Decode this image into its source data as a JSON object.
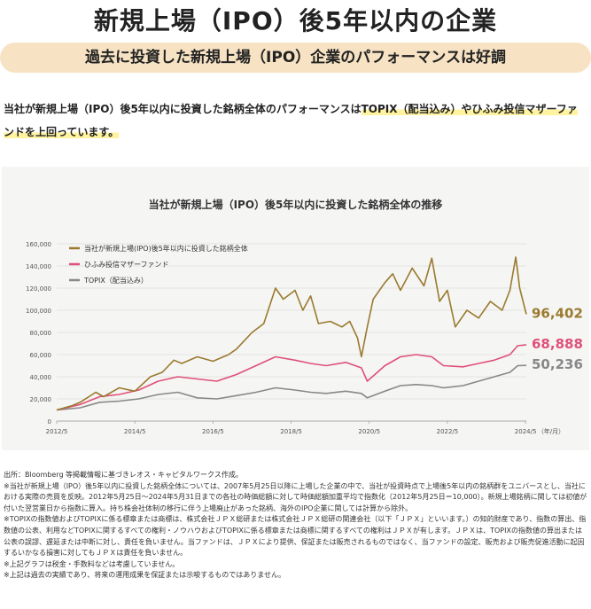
{
  "header": {
    "title": "新規上場（IPO）後5年以内の企業",
    "subtitle": "過去に投資した新規上場（IPO）企業のパフォーマンスは好調"
  },
  "intro": {
    "text_plain": "当社が新規上場（IPO）後5年以内に投資した銘柄全体のパフォーマンスは",
    "text_highlight": "TOPIX（配当込み）やひふみ投信マザーファンドを上回っています。"
  },
  "colors": {
    "ipo": "#9a7a2e",
    "hifumi": "#e0507a",
    "topix": "#888888",
    "pill_bg": "#f7e3c4",
    "highlight": "#fff3a0"
  },
  "chart_data": {
    "type": "line",
    "title": "当社が新規上場（IPO）後5年以内に投資した銘柄全体の推移",
    "x_ticks": [
      "2012/5",
      "2014/5",
      "2016/5",
      "2018/5",
      "2020/5",
      "2022/5",
      "2024/5"
    ],
    "x_unit_label": "（年/月）",
    "xlim": [
      2012.4,
      2024.42
    ],
    "ylim": [
      0,
      160000
    ],
    "y_ticks": [
      "0",
      "20,000",
      "40,000",
      "60,000",
      "80,000",
      "100,000",
      "120,000",
      "140,000",
      "160,000"
    ],
    "legend_position": "top-left",
    "series": [
      {
        "name": "当社が新規上場(IPO)後5年以内に投資した銘柄全体",
        "color": "#9a7a2e",
        "end_label": "96,402",
        "x": [
          2012.4,
          2012.8,
          2013.0,
          2013.4,
          2013.6,
          2014.0,
          2014.4,
          2014.8,
          2015.1,
          2015.4,
          2015.6,
          2016.0,
          2016.4,
          2016.8,
          2017.0,
          2017.4,
          2017.7,
          2018.0,
          2018.2,
          2018.5,
          2018.7,
          2018.9,
          2019.1,
          2019.4,
          2019.7,
          2019.9,
          2020.1,
          2020.2,
          2020.35,
          2020.5,
          2020.8,
          2021.0,
          2021.2,
          2021.5,
          2021.8,
          2022.0,
          2022.2,
          2022.4,
          2022.6,
          2022.9,
          2023.2,
          2023.5,
          2023.8,
          2024.0,
          2024.15,
          2024.25,
          2024.42
        ],
        "y": [
          10000,
          14000,
          17000,
          26000,
          22000,
          30000,
          27000,
          40000,
          44000,
          55000,
          52000,
          58000,
          54000,
          60000,
          65000,
          80000,
          88000,
          120000,
          110000,
          118000,
          100000,
          113000,
          88000,
          90000,
          85000,
          90000,
          75000,
          58000,
          85000,
          110000,
          125000,
          133000,
          118000,
          138000,
          122000,
          147000,
          108000,
          118000,
          85000,
          100000,
          93000,
          108000,
          100000,
          118000,
          148000,
          120000,
          96402
        ]
      },
      {
        "name": "ひふみ投信マザーファンド",
        "color": "#e0507a",
        "end_label": "68,888",
        "x": [
          2012.4,
          2013.0,
          2013.5,
          2014.0,
          2014.5,
          2015.0,
          2015.5,
          2016.0,
          2016.5,
          2017.0,
          2017.5,
          2018.0,
          2018.5,
          2018.9,
          2019.3,
          2019.8,
          2020.2,
          2020.35,
          2020.8,
          2021.2,
          2021.6,
          2022.0,
          2022.3,
          2022.8,
          2023.2,
          2023.6,
          2024.0,
          2024.2,
          2024.42
        ],
        "y": [
          10000,
          15000,
          22000,
          24000,
          28000,
          36000,
          40000,
          38000,
          36000,
          42000,
          50000,
          58000,
          55000,
          52000,
          50000,
          53000,
          48000,
          36000,
          50000,
          58000,
          60000,
          58000,
          50000,
          49000,
          52000,
          55000,
          60000,
          68000,
          68888
        ]
      },
      {
        "name": "TOPIX（配当込み）",
        "color": "#888888",
        "end_label": "50,236",
        "x": [
          2012.4,
          2013.0,
          2013.5,
          2014.0,
          2014.5,
          2015.0,
          2015.5,
          2016.0,
          2016.5,
          2017.0,
          2017.5,
          2018.0,
          2018.5,
          2018.9,
          2019.3,
          2019.8,
          2020.2,
          2020.35,
          2020.8,
          2021.2,
          2021.6,
          2022.0,
          2022.3,
          2022.8,
          2023.2,
          2023.6,
          2024.0,
          2024.2,
          2024.42
        ],
        "y": [
          10000,
          12000,
          17000,
          18000,
          20000,
          24000,
          26000,
          21000,
          20000,
          23000,
          26000,
          30000,
          28000,
          26000,
          25000,
          27000,
          25000,
          21000,
          27000,
          32000,
          33000,
          32000,
          30000,
          32000,
          36000,
          40000,
          44000,
          50000,
          50236
        ]
      }
    ]
  },
  "notes": [
    "出所：Bloomberg 等掲載情報に基づきレオス・キャピタルワークス作成。",
    "※当社が新規上場（IPO）後5年以内に投資した銘柄全体については、2007年5月25日以降に上場した企業の中で、当社が投資時点で上場後5年以内の銘柄群をユニバースとし、当社における実際の売買を反映。2012年5月25日～2024年5月31日までの各社の時価総額に対して時価総額加重平均で指数化（2012年5月25日＝10,000）。新規上場銘柄に関しては初値が付いた翌営業日から指数に算入。持ち株会社体制の移行に伴う上場廃止があった銘柄、海外のIPO企業に関しては計算から除外。",
    "※TOPIXの指数値およびTOPIXに係る標章または商標は、株式会社ＪＰＸ総研または株式会社ＪＰＸ総研の関連会社（以下「ＪＰＸ」といいます。）の知的財産であり、指数の算出、指数値の公表、利用などTOPIXに関するすべての権利・ノウハウおよびTOPIXに係る標章または商標に関するすべての権利はＪＰＸが有します。ＪＰＸは、TOPIXの指数値の算出または公表の誤謬、遅延または中断に対し、責任を負いません。当ファンドは、ＪＰＸにより提供、保証または販売されるものではなく、当ファンドの設定、販売および販売促進活動に起因するいかなる損害に対してもＪＰＸは責任を負いません。",
    "※上記グラフは税金・手数料などは考慮していません。",
    "※上記は過去の実績であり、将来の運用成果を保証または示唆するものではありません。"
  ]
}
